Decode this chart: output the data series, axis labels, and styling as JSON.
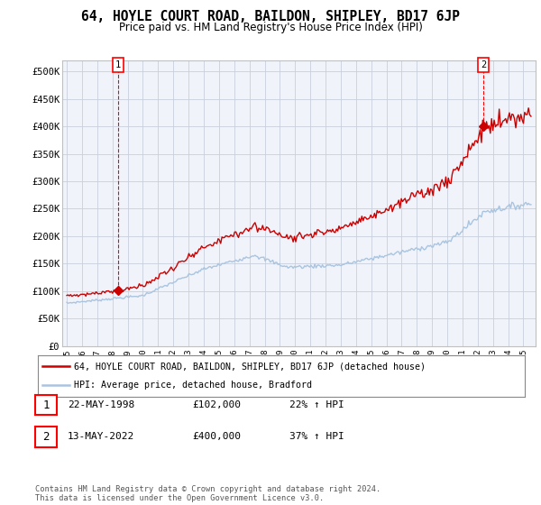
{
  "title": "64, HOYLE COURT ROAD, BAILDON, SHIPLEY, BD17 6JP",
  "subtitle": "Price paid vs. HM Land Registry's House Price Index (HPI)",
  "ylabel_ticks": [
    "£0",
    "£50K",
    "£100K",
    "£150K",
    "£200K",
    "£250K",
    "£300K",
    "£350K",
    "£400K",
    "£450K",
    "£500K"
  ],
  "ytick_values": [
    0,
    50000,
    100000,
    150000,
    200000,
    250000,
    300000,
    350000,
    400000,
    450000,
    500000
  ],
  "ylim": [
    0,
    520000
  ],
  "purchase1_year": 1998.38,
  "purchase1_price": 102000,
  "purchase2_year": 2022.37,
  "purchase2_price": 400000,
  "hpi_color": "#aac4e0",
  "sale_color": "#cc0000",
  "marker_color": "#cc0000",
  "background_color": "#f0f4fa",
  "grid_color": "#cccccc",
  "legend_label_sale": "64, HOYLE COURT ROAD, BAILDON, SHIPLEY, BD17 6JP (detached house)",
  "legend_label_hpi": "HPI: Average price, detached house, Bradford",
  "table_row1": [
    "1",
    "22-MAY-1998",
    "£102,000",
    "22% ↑ HPI"
  ],
  "table_row2": [
    "2",
    "13-MAY-2022",
    "£400,000",
    "37% ↑ HPI"
  ],
  "footnote": "Contains HM Land Registry data © Crown copyright and database right 2024.\nThis data is licensed under the Open Government Licence v3.0."
}
